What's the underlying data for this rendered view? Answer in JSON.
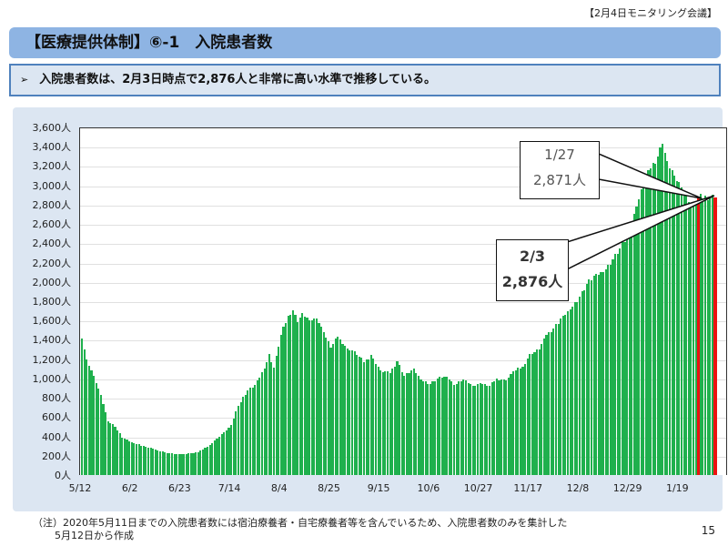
{
  "header": {
    "meeting_label": "【2月4日モニタリング会議】",
    "title": "【医療提供体制】⑥-1　入院患者数",
    "summary_arrow": "➢",
    "summary": "入院患者数は、2月3日時点で2,876人と非常に高い水準で推移している。"
  },
  "footer": {
    "note_line1": "（注）2020年5月11日までの入院患者数には宿泊療養者・自宅療養者等を含んでいるため、入院患者数のみを集計した",
    "note_line2": "5月12日から作成",
    "page_number": "15"
  },
  "colors": {
    "bar": "#1fb04d",
    "highlight_bar": "#ee1111",
    "title_bg": "#8eb4e3",
    "panel_bg": "#dce6f2"
  },
  "chart_data": {
    "type": "bar",
    "title": "入院患者数",
    "xlabel": "",
    "ylabel": "",
    "ylim": [
      0,
      3600
    ],
    "y_ticks": [
      "0人",
      "200人",
      "400人",
      "600人",
      "800人",
      "1,000人",
      "1,200人",
      "1,400人",
      "1,600人",
      "1,800人",
      "2,000人",
      "2,200人",
      "2,400人",
      "2,600人",
      "2,800人",
      "3,000人",
      "3,200人",
      "3,400人",
      "3,600人"
    ],
    "x_tick_labels": [
      "5/12",
      "6/2",
      "6/23",
      "7/14",
      "8/4",
      "8/25",
      "9/15",
      "10/6",
      "10/27",
      "11/17",
      "12/8",
      "12/29",
      "1/19"
    ],
    "grid": true,
    "legend": "none",
    "x_start": "5/12",
    "x_end": "2/3",
    "num_days": 268,
    "anchor_points": [
      {
        "date": "5/12",
        "day": 0,
        "value": 1413
      },
      {
        "date": "5/14",
        "day": 2,
        "value": 1200
      },
      {
        "date": "5/17",
        "day": 5,
        "value": 1030
      },
      {
        "date": "5/20",
        "day": 8,
        "value": 830
      },
      {
        "date": "5/23",
        "day": 11,
        "value": 560
      },
      {
        "date": "5/26",
        "day": 14,
        "value": 500
      },
      {
        "date": "5/29",
        "day": 17,
        "value": 390
      },
      {
        "date": "6/2",
        "day": 21,
        "value": 340
      },
      {
        "date": "6/7",
        "day": 26,
        "value": 300
      },
      {
        "date": "6/11",
        "day": 30,
        "value": 270
      },
      {
        "date": "6/17",
        "day": 36,
        "value": 230
      },
      {
        "date": "6/23",
        "day": 42,
        "value": 215
      },
      {
        "date": "6/26",
        "day": 45,
        "value": 225
      },
      {
        "date": "6/30",
        "day": 49,
        "value": 240
      },
      {
        "date": "7/4",
        "day": 53,
        "value": 290
      },
      {
        "date": "7/8",
        "day": 57,
        "value": 380
      },
      {
        "date": "7/11",
        "day": 60,
        "value": 440
      },
      {
        "date": "7/14",
        "day": 63,
        "value": 520
      },
      {
        "date": "7/17",
        "day": 66,
        "value": 720
      },
      {
        "date": "7/21",
        "day": 70,
        "value": 880
      },
      {
        "date": "7/24",
        "day": 73,
        "value": 930
      },
      {
        "date": "7/28",
        "day": 77,
        "value": 1100
      },
      {
        "date": "7/30",
        "day": 79,
        "value": 1250
      },
      {
        "date": "8/1",
        "day": 81,
        "value": 1110
      },
      {
        "date": "8/4",
        "day": 84,
        "value": 1450
      },
      {
        "date": "8/7",
        "day": 87,
        "value": 1650
      },
      {
        "date": "8/9",
        "day": 89,
        "value": 1710
      },
      {
        "date": "8/11",
        "day": 91,
        "value": 1580
      },
      {
        "date": "8/13",
        "day": 93,
        "value": 1680
      },
      {
        "date": "8/16",
        "day": 96,
        "value": 1600
      },
      {
        "date": "8/19",
        "day": 99,
        "value": 1620
      },
      {
        "date": "8/22",
        "day": 102,
        "value": 1480
      },
      {
        "date": "8/25",
        "day": 105,
        "value": 1320
      },
      {
        "date": "8/28",
        "day": 108,
        "value": 1430
      },
      {
        "date": "9/1",
        "day": 112,
        "value": 1310
      },
      {
        "date": "9/4",
        "day": 115,
        "value": 1280
      },
      {
        "date": "9/8",
        "day": 119,
        "value": 1170
      },
      {
        "date": "9/11",
        "day": 122,
        "value": 1240
      },
      {
        "date": "9/15",
        "day": 126,
        "value": 1080
      },
      {
        "date": "9/19",
        "day": 130,
        "value": 1060
      },
      {
        "date": "9/22",
        "day": 133,
        "value": 1180
      },
      {
        "date": "9/25",
        "day": 136,
        "value": 1030
      },
      {
        "date": "9/29",
        "day": 140,
        "value": 1100
      },
      {
        "date": "10/2",
        "day": 143,
        "value": 990
      },
      {
        "date": "10/6",
        "day": 147,
        "value": 940
      },
      {
        "date": "10/9",
        "day": 150,
        "value": 1000
      },
      {
        "date": "10/13",
        "day": 154,
        "value": 1020
      },
      {
        "date": "10/16",
        "day": 157,
        "value": 930
      },
      {
        "date": "10/20",
        "day": 161,
        "value": 990
      },
      {
        "date": "10/24",
        "day": 165,
        "value": 920
      },
      {
        "date": "10/27",
        "day": 168,
        "value": 950
      },
      {
        "date": "10/31",
        "day": 172,
        "value": 920
      },
      {
        "date": "11/3",
        "day": 175,
        "value": 1000
      },
      {
        "date": "11/7",
        "day": 179,
        "value": 980
      },
      {
        "date": "11/10",
        "day": 182,
        "value": 1070
      },
      {
        "date": "11/14",
        "day": 186,
        "value": 1120
      },
      {
        "date": "11/17",
        "day": 189,
        "value": 1250
      },
      {
        "date": "11/21",
        "day": 193,
        "value": 1300
      },
      {
        "date": "11/24",
        "day": 196,
        "value": 1450
      },
      {
        "date": "11/27",
        "day": 199,
        "value": 1520
      },
      {
        "date": "12/1",
        "day": 203,
        "value": 1650
      },
      {
        "date": "12/4",
        "day": 206,
        "value": 1720
      },
      {
        "date": "12/8",
        "day": 210,
        "value": 1850
      },
      {
        "date": "12/11",
        "day": 213,
        "value": 1980
      },
      {
        "date": "12/15",
        "day": 217,
        "value": 2080
      },
      {
        "date": "12/18",
        "day": 220,
        "value": 2100
      },
      {
        "date": "12/22",
        "day": 224,
        "value": 2230
      },
      {
        "date": "12/25",
        "day": 227,
        "value": 2350
      },
      {
        "date": "12/29",
        "day": 231,
        "value": 2500
      },
      {
        "date": "1/1",
        "day": 234,
        "value": 2780
      },
      {
        "date": "1/4",
        "day": 237,
        "value": 3000
      },
      {
        "date": "1/7",
        "day": 240,
        "value": 3180
      },
      {
        "date": "1/10",
        "day": 243,
        "value": 3300
      },
      {
        "date": "1/12",
        "day": 245,
        "value": 3427
      },
      {
        "date": "1/14",
        "day": 247,
        "value": 3250
      },
      {
        "date": "1/17",
        "day": 250,
        "value": 3100
      },
      {
        "date": "1/20",
        "day": 253,
        "value": 2980
      },
      {
        "date": "1/23",
        "day": 256,
        "value": 2830
      },
      {
        "date": "1/25",
        "day": 258,
        "value": 2790
      },
      {
        "date": "1/27",
        "day": 260,
        "value": 2871
      },
      {
        "date": "1/30",
        "day": 263,
        "value": 2890
      },
      {
        "date": "2/3",
        "day": 267,
        "value": 2876
      }
    ],
    "highlighted": [
      {
        "date": "1/27",
        "value": 2871
      },
      {
        "date": "2/3",
        "value": 2876
      }
    ],
    "annotations": [
      {
        "id": "jan27",
        "date_label": "1/27",
        "value_label": "2,871人"
      },
      {
        "id": "feb3",
        "date_label": "2/3",
        "value_label": "2,876人"
      }
    ]
  }
}
